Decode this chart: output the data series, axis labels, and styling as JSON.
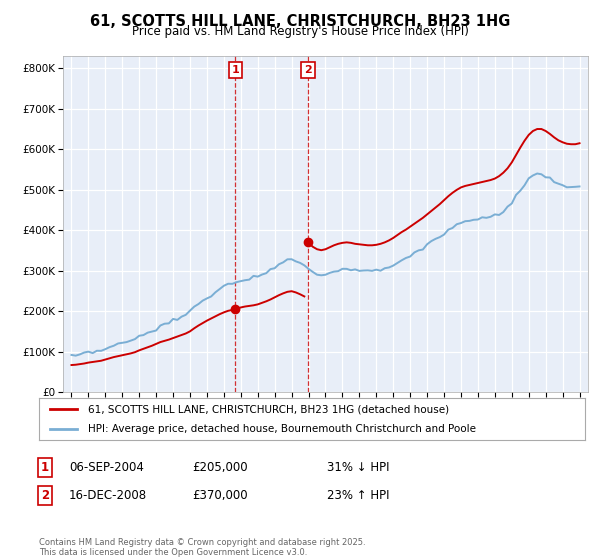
{
  "title": "61, SCOTTS HILL LANE, CHRISTCHURCH, BH23 1HG",
  "subtitle": "Price paid vs. HM Land Registry's House Price Index (HPI)",
  "legend_line1": "61, SCOTTS HILL LANE, CHRISTCHURCH, BH23 1HG (detached house)",
  "legend_line2": "HPI: Average price, detached house, Bournemouth Christchurch and Poole",
  "annotation1_label": "1",
  "annotation1_date": "06-SEP-2004",
  "annotation1_price": "£205,000",
  "annotation1_hpi": "31% ↓ HPI",
  "annotation2_label": "2",
  "annotation2_date": "16-DEC-2008",
  "annotation2_price": "£370,000",
  "annotation2_hpi": "23% ↑ HPI",
  "footer": "Contains HM Land Registry data © Crown copyright and database right 2025.\nThis data is licensed under the Open Government Licence v3.0.",
  "sale1_x": 2004.68,
  "sale1_y": 205000,
  "sale2_x": 2008.96,
  "sale2_y": 370000,
  "hpi_color": "#7aaed4",
  "price_color": "#cc0000",
  "background_color": "#e8eef8",
  "ylim": [
    0,
    830000
  ],
  "xlim": [
    1994.5,
    2025.5
  ],
  "years_hpi": [
    1995,
    1995.25,
    1995.5,
    1995.75,
    1996,
    1996.25,
    1996.5,
    1996.75,
    1997,
    1997.25,
    1997.5,
    1997.75,
    1998,
    1998.25,
    1998.5,
    1998.75,
    1999,
    1999.25,
    1999.5,
    1999.75,
    2000,
    2000.25,
    2000.5,
    2000.75,
    2001,
    2001.25,
    2001.5,
    2001.75,
    2002,
    2002.25,
    2002.5,
    2002.75,
    2003,
    2003.25,
    2003.5,
    2003.75,
    2004,
    2004.25,
    2004.5,
    2004.75,
    2005,
    2005.25,
    2005.5,
    2005.75,
    2006,
    2006.25,
    2006.5,
    2006.75,
    2007,
    2007.25,
    2007.5,
    2007.75,
    2008,
    2008.25,
    2008.5,
    2008.75,
    2009,
    2009.25,
    2009.5,
    2009.75,
    2010,
    2010.25,
    2010.5,
    2010.75,
    2011,
    2011.25,
    2011.5,
    2011.75,
    2012,
    2012.25,
    2012.5,
    2012.75,
    2013,
    2013.25,
    2013.5,
    2013.75,
    2014,
    2014.25,
    2014.5,
    2014.75,
    2015,
    2015.25,
    2015.5,
    2015.75,
    2016,
    2016.25,
    2016.5,
    2016.75,
    2017,
    2017.25,
    2017.5,
    2017.75,
    2018,
    2018.25,
    2018.5,
    2018.75,
    2019,
    2019.25,
    2019.5,
    2019.75,
    2020,
    2020.25,
    2020.5,
    2020.75,
    2021,
    2021.25,
    2021.5,
    2021.75,
    2022,
    2022.25,
    2022.5,
    2022.75,
    2023,
    2023.25,
    2023.5,
    2023.75,
    2024,
    2024.25,
    2024.5,
    2024.75,
    2025
  ],
  "hpi_vals": [
    88000,
    89000,
    91000,
    93000,
    96000,
    98000,
    100000,
    102000,
    106000,
    110000,
    114000,
    117000,
    120000,
    123000,
    126000,
    130000,
    136000,
    141000,
    146000,
    151000,
    157000,
    163000,
    167000,
    171000,
    176000,
    181000,
    186000,
    191000,
    198000,
    208000,
    217000,
    225000,
    233000,
    240000,
    247000,
    254000,
    260000,
    265000,
    268000,
    272000,
    276000,
    279000,
    281000,
    283000,
    286000,
    291000,
    296000,
    302000,
    309000,
    316000,
    322000,
    327000,
    329000,
    325000,
    319000,
    312000,
    304000,
    296000,
    291000,
    289000,
    291000,
    295000,
    299000,
    302000,
    304000,
    305000,
    304000,
    302000,
    301000,
    300000,
    299000,
    299000,
    300000,
    302000,
    305000,
    309000,
    314000,
    320000,
    326000,
    331000,
    337000,
    343000,
    349000,
    355000,
    362000,
    369000,
    376000,
    383000,
    391000,
    399000,
    406000,
    412000,
    417000,
    420000,
    422000,
    424000,
    426000,
    428000,
    430000,
    432000,
    435000,
    440000,
    447000,
    456000,
    468000,
    483000,
    498000,
    512000,
    524000,
    532000,
    536000,
    536000,
    532000,
    526000,
    519000,
    513000,
    509000,
    506000,
    505000,
    505000,
    507000
  ]
}
